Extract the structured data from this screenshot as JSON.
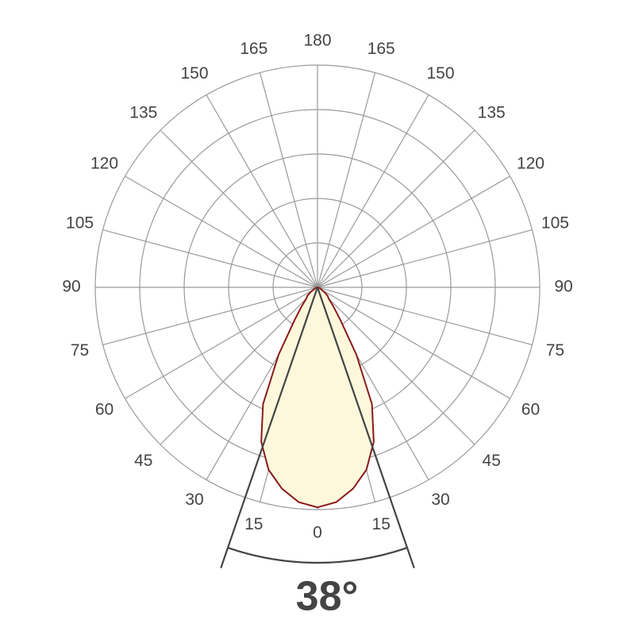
{
  "chart_data": {
    "type": "polar",
    "x": [
      -90,
      -80,
      -70,
      -60,
      -55,
      -50,
      -45,
      -40,
      -35,
      -30,
      -25,
      -20,
      -15,
      -10,
      -5,
      0,
      5,
      10,
      15,
      20,
      25,
      30,
      35,
      40,
      45,
      50,
      55,
      60,
      70,
      80,
      90
    ],
    "values": [
      0,
      0,
      1,
      2,
      4,
      6,
      7,
      11,
      18,
      35,
      58,
      74,
      85,
      92,
      97,
      99,
      97,
      92,
      85,
      74,
      58,
      35,
      18,
      11,
      7,
      6,
      4,
      2,
      1,
      0,
      0
    ],
    "color": "#8b1a1a",
    "fill": "#fdf8dc",
    "rlim": [
      0,
      100
    ],
    "rticks": [
      20,
      40,
      60,
      80,
      100
    ],
    "xticks": [
      0,
      15,
      30,
      45,
      60,
      75,
      90,
      105,
      120,
      135,
      150,
      165,
      180
    ],
    "grid": true,
    "beam_angle": {
      "value": 38,
      "label": "38°"
    }
  }
}
